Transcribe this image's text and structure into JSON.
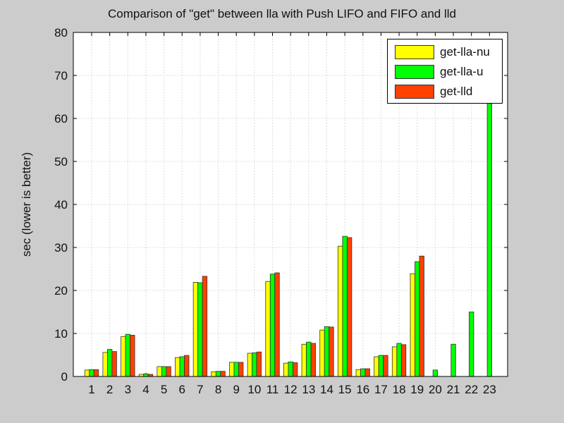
{
  "chart_data": {
    "type": "bar",
    "title": "Comparison of \"get\" between lla with Push LIFO and FIFO and lld",
    "xlabel": "",
    "ylabel": "sec (lower is better)",
    "ylim": [
      0,
      80
    ],
    "yticks": [
      0,
      10,
      20,
      30,
      40,
      50,
      60,
      70,
      80
    ],
    "grid": true,
    "legend_position": "upper right",
    "categories": [
      "1",
      "2",
      "3",
      "4",
      "5",
      "6",
      "7",
      "8",
      "9",
      "10",
      "11",
      "12",
      "13",
      "14",
      "15",
      "16",
      "17",
      "18",
      "19",
      "20",
      "21",
      "22",
      "23"
    ],
    "series": [
      {
        "name": "get-lla-nu",
        "color": "#ffff00",
        "values": [
          1.5,
          5.6,
          9.3,
          0.5,
          2.3,
          4.4,
          21.9,
          1.1,
          3.3,
          5.4,
          22.1,
          3.1,
          7.5,
          10.8,
          30.3,
          1.6,
          4.6,
          6.9,
          23.9,
          null,
          null,
          null,
          null
        ]
      },
      {
        "name": "get-lla-u",
        "color": "#00ff00",
        "values": [
          1.6,
          6.3,
          9.8,
          0.6,
          2.3,
          4.6,
          21.8,
          1.2,
          3.3,
          5.5,
          23.8,
          3.4,
          8.0,
          11.6,
          32.6,
          1.8,
          4.9,
          7.7,
          26.7,
          1.5,
          7.5,
          15.0,
          66.0
        ]
      },
      {
        "name": "get-lld",
        "color": "#ff4000",
        "values": [
          1.6,
          5.8,
          9.6,
          0.5,
          2.3,
          4.9,
          23.3,
          1.2,
          3.3,
          5.7,
          24.1,
          3.2,
          7.7,
          11.5,
          32.3,
          1.8,
          4.9,
          7.4,
          28.0,
          null,
          null,
          null,
          null
        ]
      }
    ]
  }
}
